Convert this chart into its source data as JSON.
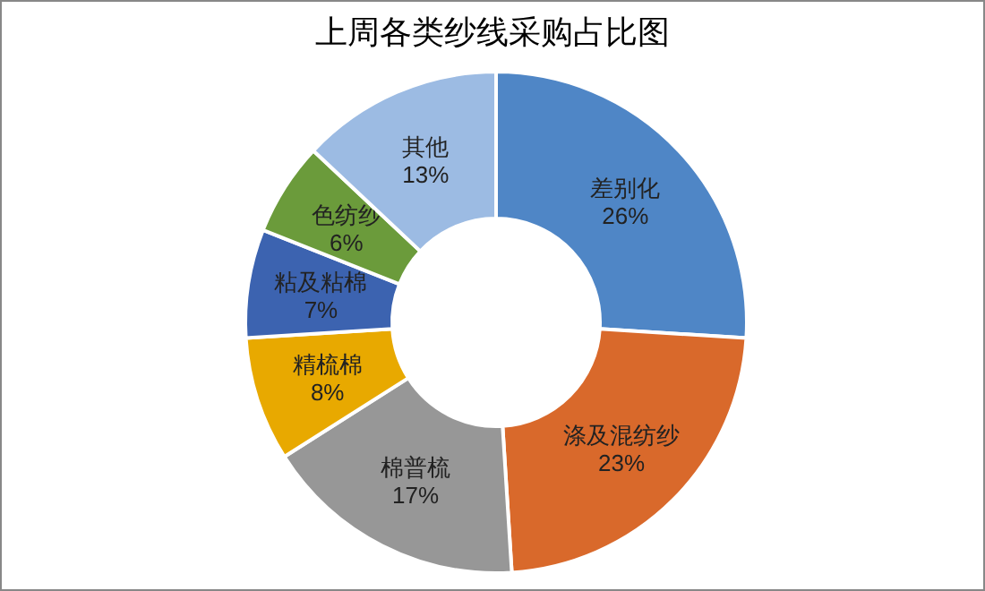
{
  "chart_data": {
    "type": "donut",
    "title": "上周各类纱线采购占比图",
    "categories": [
      "差别化",
      "涤及混纺纱",
      "棉普梳",
      "精梳棉",
      "粘及粘棉",
      "色纺纱",
      "其他"
    ],
    "values": [
      26,
      23,
      17,
      8,
      7,
      6,
      13
    ],
    "colors": [
      "#4f86c6",
      "#d9692b",
      "#979797",
      "#e8a900",
      "#3c63b0",
      "#6b9b3b",
      "#9cbbe3"
    ],
    "value_labels": [
      "26%",
      "23%",
      "17%",
      "8%",
      "7%",
      "6%",
      "13%"
    ]
  }
}
